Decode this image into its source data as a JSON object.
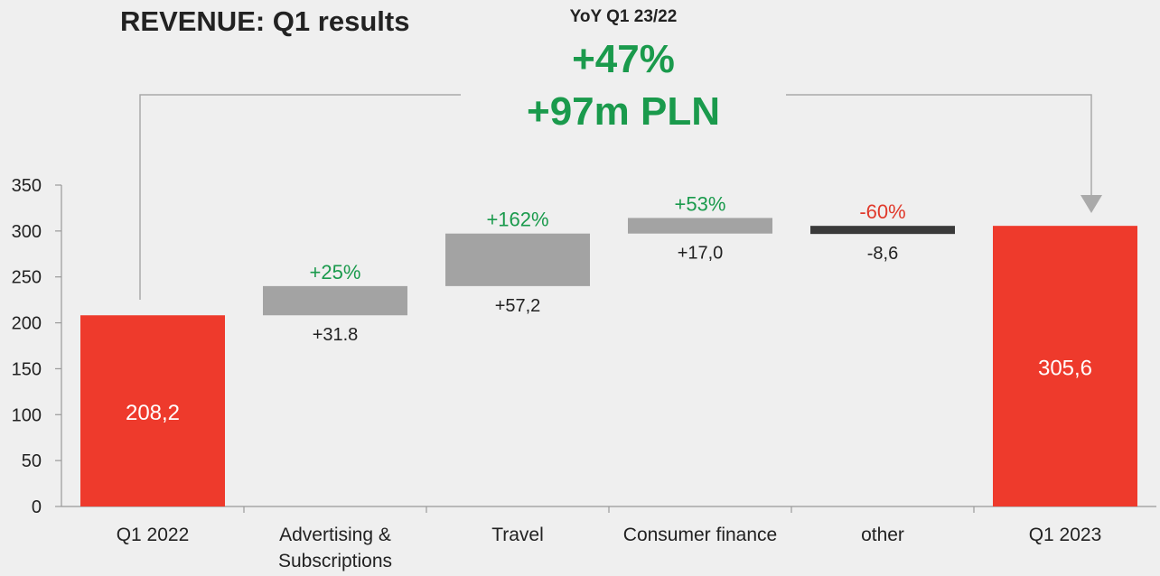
{
  "header": {
    "title": "REVENUE: Q1 results",
    "yoy_label": "YoY Q1 23/22",
    "yoy_percent": "+47%",
    "yoy_amount": "+97m PLN"
  },
  "colors": {
    "total_bar": "#ee3a2c",
    "delta_bar": "#a3a3a3",
    "negative_bar": "#3a3a3a",
    "positive_text": "#1a9a4c",
    "negative_text": "#e0392b",
    "connector": "#aaaaaa"
  },
  "chart_data": {
    "type": "bar",
    "subtype": "waterfall",
    "ylim": [
      0,
      350
    ],
    "yticks": [
      0,
      50,
      100,
      150,
      200,
      250,
      300,
      350
    ],
    "ytick_labels": [
      "0",
      "50",
      "100",
      "150",
      "200",
      "250",
      "300",
      "350"
    ],
    "categories": [
      {
        "lines": [
          "Q1 2022"
        ]
      },
      {
        "lines": [
          "Advertising &",
          "Subscriptions"
        ]
      },
      {
        "lines": [
          "Travel"
        ]
      },
      {
        "lines": [
          "Consumer finance"
        ]
      },
      {
        "lines": [
          "other"
        ]
      },
      {
        "lines": [
          "Q1 2023"
        ]
      }
    ],
    "bars": [
      {
        "kind": "total",
        "base": 0,
        "value": 208.2,
        "label": "208,2",
        "pct": "",
        "pct_sign": ""
      },
      {
        "kind": "delta",
        "base": 208.2,
        "value": 31.8,
        "label": "+31.8",
        "pct": "+25%",
        "pct_sign": "positive"
      },
      {
        "kind": "delta",
        "base": 240.0,
        "value": 57.2,
        "label": "+57,2",
        "pct": "+162%",
        "pct_sign": "positive"
      },
      {
        "kind": "delta",
        "base": 297.2,
        "value": 17.0,
        "label": "+17,0",
        "pct": "+53%",
        "pct_sign": "positive"
      },
      {
        "kind": "negative",
        "base": 305.6,
        "value": 8.6,
        "label": "-8,6",
        "pct": "-60%",
        "pct_sign": "negative"
      },
      {
        "kind": "total",
        "base": 0,
        "value": 305.6,
        "label": "305,6",
        "pct": "",
        "pct_sign": ""
      }
    ]
  }
}
